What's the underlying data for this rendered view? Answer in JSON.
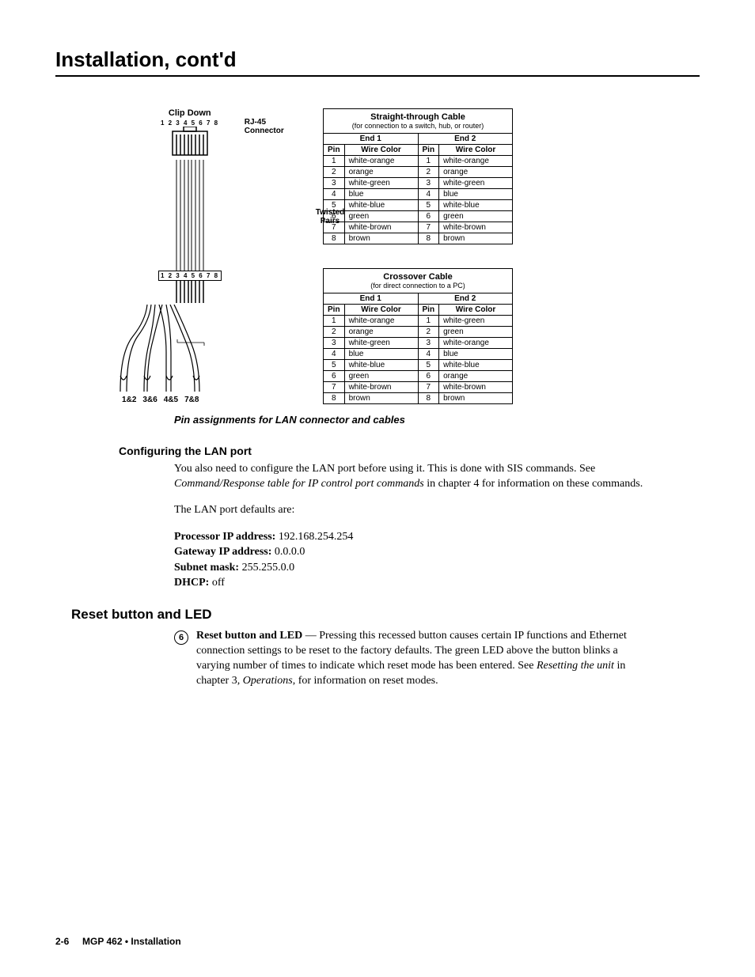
{
  "page_title": "Installation, cont'd",
  "connector": {
    "clip_down": "Clip Down",
    "nums_top": "1 2 3 4 5 6 7 8",
    "rj45_label_1": "RJ-45",
    "rj45_label_2": "Connector",
    "nums_mid": "1 2 3 4 5 6 7 8",
    "twisted_1": "Twisted",
    "twisted_2": "Pairs",
    "pair_1": "1&2",
    "pair_2": "3&6",
    "pair_3": "4&5",
    "pair_4": "7&8"
  },
  "straight_table": {
    "title": "Straight-through Cable",
    "subtitle": "(for connection to a switch, hub, or router)",
    "end1": "End 1",
    "end2": "End 2",
    "pin_hdr": "Pin",
    "wc_hdr": "Wire Color",
    "rows": [
      {
        "p1": "1",
        "c1": "white-orange",
        "p2": "1",
        "c2": "white-orange"
      },
      {
        "p1": "2",
        "c1": "orange",
        "p2": "2",
        "c2": "orange"
      },
      {
        "p1": "3",
        "c1": "white-green",
        "p2": "3",
        "c2": "white-green"
      },
      {
        "p1": "4",
        "c1": "blue",
        "p2": "4",
        "c2": "blue"
      },
      {
        "p1": "5",
        "c1": "white-blue",
        "p2": "5",
        "c2": "white-blue"
      },
      {
        "p1": "6",
        "c1": "green",
        "p2": "6",
        "c2": "green"
      },
      {
        "p1": "7",
        "c1": "white-brown",
        "p2": "7",
        "c2": "white-brown"
      },
      {
        "p1": "8",
        "c1": "brown",
        "p2": "8",
        "c2": "brown"
      }
    ]
  },
  "crossover_table": {
    "title": "Crossover Cable",
    "subtitle": "(for direct connection to a PC)",
    "end1": "End 1",
    "end2": "End 2",
    "pin_hdr": "Pin",
    "wc_hdr": "Wire Color",
    "rows": [
      {
        "p1": "1",
        "c1": "white-orange",
        "p2": "1",
        "c2": "white-green"
      },
      {
        "p1": "2",
        "c1": "orange",
        "p2": "2",
        "c2": "green"
      },
      {
        "p1": "3",
        "c1": "white-green",
        "p2": "3",
        "c2": "white-orange"
      },
      {
        "p1": "4",
        "c1": "blue",
        "p2": "4",
        "c2": "blue"
      },
      {
        "p1": "5",
        "c1": "white-blue",
        "p2": "5",
        "c2": "white-blue"
      },
      {
        "p1": "6",
        "c1": "green",
        "p2": "6",
        "c2": "orange"
      },
      {
        "p1": "7",
        "c1": "white-brown",
        "p2": "7",
        "c2": "white-brown"
      },
      {
        "p1": "8",
        "c1": "brown",
        "p2": "8",
        "c2": "brown"
      }
    ]
  },
  "caption": "Pin assignments for LAN connector and cables",
  "config_heading": "Configuring the LAN port",
  "config_p1_a": "You also need to configure the LAN port before using it.  This is done with SIS commands.  See ",
  "config_p1_em": "Command/Response table for IP control port commands",
  "config_p1_b": " in chapter 4 for information on these commands.",
  "config_p2": "The LAN port defaults are:",
  "defaults": {
    "ip_label": "Processor IP address:",
    "ip_val": "  192.168.254.254",
    "gw_label": "Gateway IP address:",
    "gw_val": "  0.0.0.0",
    "mask_label": "Subnet mask:",
    "mask_val": "  255.255.0.0",
    "dhcp_label": "DHCP:",
    "dhcp_val": "  off"
  },
  "reset_heading": "Reset button and LED",
  "callout_num": "6",
  "reset_bold": "Reset button and LED",
  "reset_text_a": " — Pressing this recessed button causes certain IP functions and Ethernet connection settings to be reset to the factory defaults.  The green LED above the button blinks a varying number of times to indicate which reset mode has been entered.  See ",
  "reset_em": "Resetting the unit",
  "reset_text_b": " in chapter 3, ",
  "reset_em2": "Operations",
  "reset_text_c": ", for information on reset modes.",
  "footer_page": "2-6",
  "footer_text": "MGP 462 • Installation"
}
